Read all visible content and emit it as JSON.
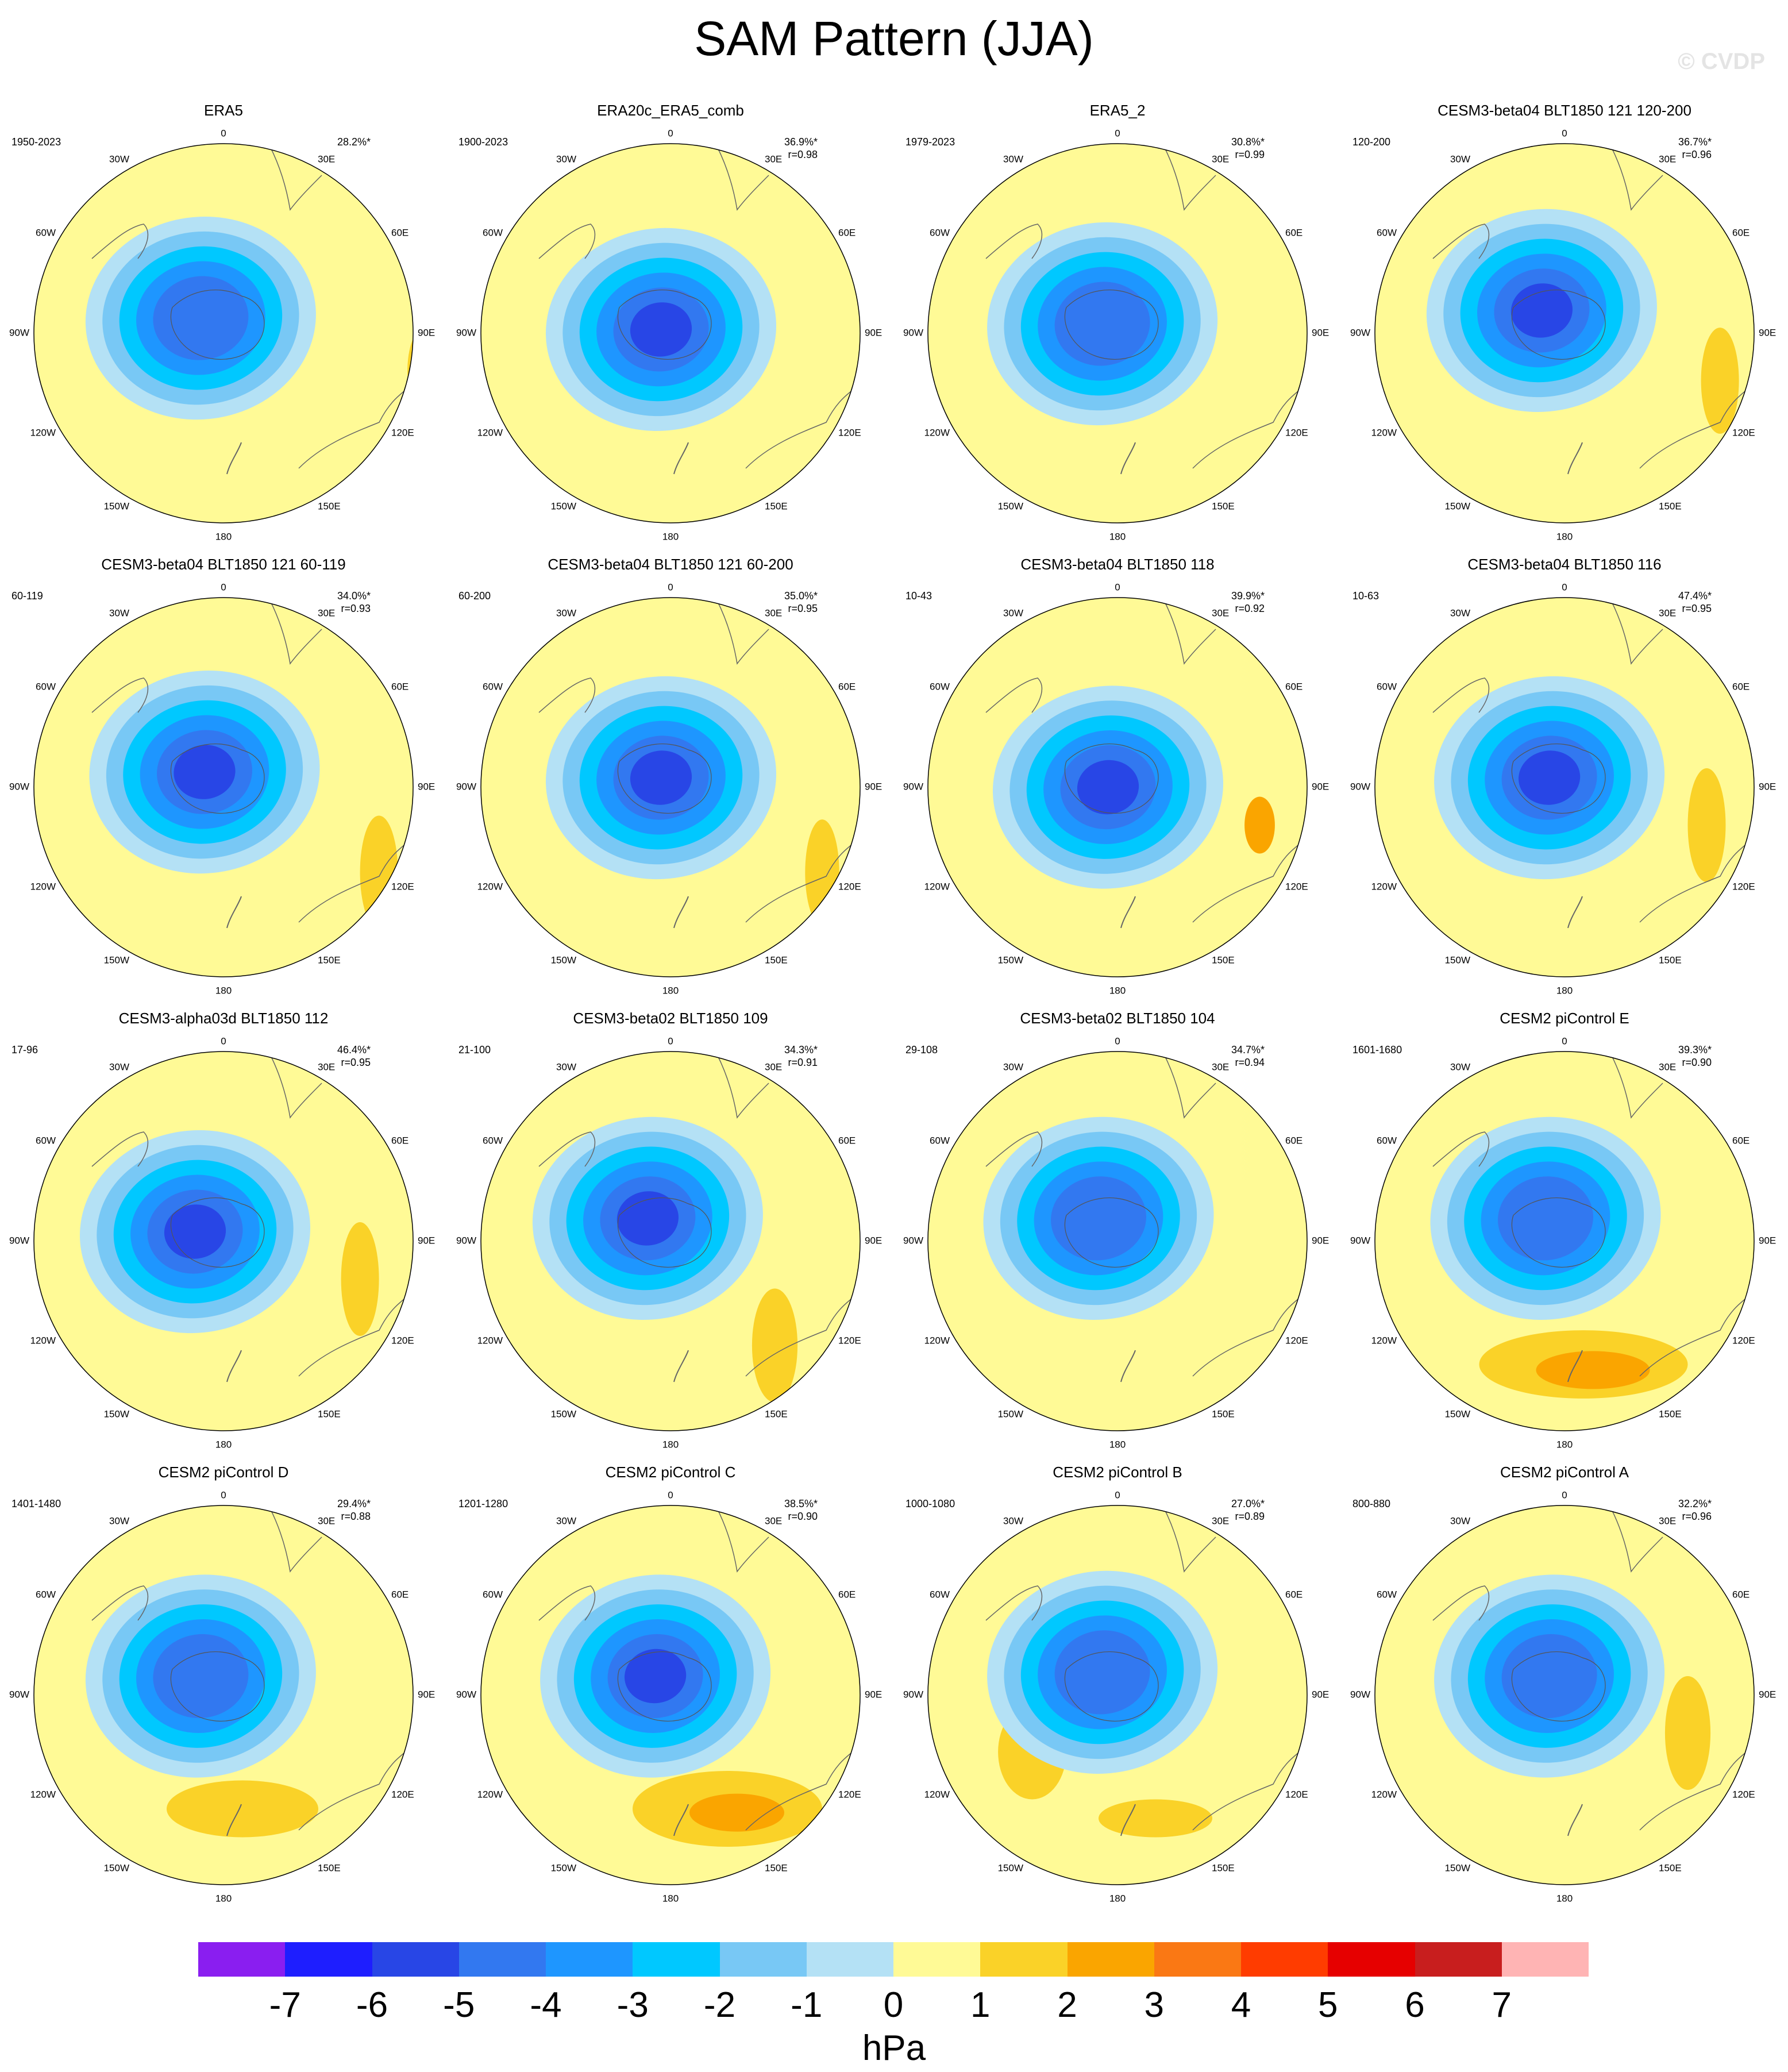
{
  "title": "SAM Pattern (JJA)",
  "watermark": "© CVDP",
  "colorbar": {
    "unit": "hPa",
    "tick_labels": [
      "-7",
      "-6",
      "-5",
      "-4",
      "-3",
      "-2",
      "-1",
      "0",
      "1",
      "2",
      "3",
      "4",
      "5",
      "6",
      "7"
    ],
    "colors": [
      "#8a1ef0",
      "#1e1eff",
      "#2846e6",
      "#3278f0",
      "#1e96ff",
      "#00c8ff",
      "#78c8f5",
      "#b4e1f5",
      "#fffa96",
      "#fad228",
      "#faa500",
      "#fa7814",
      "#ff3c00",
      "#e60000",
      "#c81e1e",
      "#ffb4b4"
    ]
  },
  "map_axis_labels": {
    "top": "0",
    "upper_left": "30W",
    "upper_right": "30E",
    "mid_upper_left": "60W",
    "mid_upper_right": "60E",
    "left": "90W",
    "right": "90E",
    "mid_lower_left": "120W",
    "mid_lower_right": "120E",
    "lower_left": "150W",
    "lower_right": "150E",
    "bottom": "180"
  },
  "panels": [
    {
      "title": "ERA5",
      "years": "1950-2023",
      "pct": "28.2%*",
      "r": ""
    },
    {
      "title": "ERA20c_ERA5_comb",
      "years": "1900-2023",
      "pct": "36.9%*",
      "r": "r=0.98"
    },
    {
      "title": "ERA5_2",
      "years": "1979-2023",
      "pct": "30.8%*",
      "r": "r=0.99"
    },
    {
      "title": "CESM3-beta04 BLT1850 121 120-200",
      "years": "120-200",
      "pct": "36.7%*",
      "r": "r=0.96"
    },
    {
      "title": "CESM3-beta04 BLT1850 121 60-119",
      "years": "60-119",
      "pct": "34.0%*",
      "r": "r=0.93"
    },
    {
      "title": "CESM3-beta04 BLT1850 121 60-200",
      "years": "60-200",
      "pct": "35.0%*",
      "r": "r=0.95"
    },
    {
      "title": "CESM3-beta04 BLT1850 118",
      "years": "10-43",
      "pct": "39.9%*",
      "r": "r=0.92"
    },
    {
      "title": "CESM3-beta04 BLT1850 116",
      "years": "10-63",
      "pct": "47.4%*",
      "r": "r=0.95"
    },
    {
      "title": "CESM3-alpha03d BLT1850 112",
      "years": "17-96",
      "pct": "46.4%*",
      "r": "r=0.95"
    },
    {
      "title": "CESM3-beta02 BLT1850 109",
      "years": "21-100",
      "pct": "34.3%*",
      "r": "r=0.91"
    },
    {
      "title": "CESM3-beta02 BLT1850 104",
      "years": "29-108",
      "pct": "34.7%*",
      "r": "r=0.94"
    },
    {
      "title": "CESM2 piControl E",
      "years": "1601-1680",
      "pct": "39.3%*",
      "r": "r=0.90"
    },
    {
      "title": "CESM2 piControl D",
      "years": "1401-1480",
      "pct": "29.4%*",
      "r": "r=0.88"
    },
    {
      "title": "CESM2 piControl C",
      "years": "1201-1280",
      "pct": "38.5%*",
      "r": "r=0.90"
    },
    {
      "title": "CESM2 piControl B",
      "years": "1000-1080",
      "pct": "27.0%*",
      "r": "r=0.89"
    },
    {
      "title": "CESM2 piControl A",
      "years": "800-880",
      "pct": "32.2%*",
      "r": "r=0.96"
    }
  ]
}
